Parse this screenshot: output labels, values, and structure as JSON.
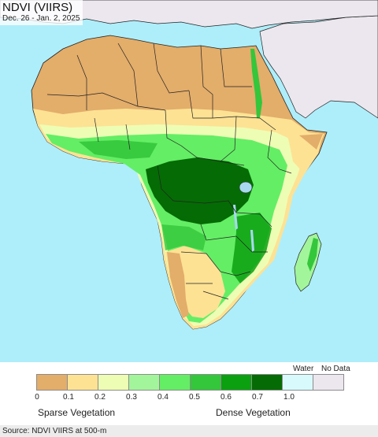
{
  "title": "NDVI (VIIRS)",
  "subtitle": "Dec. 26 - Jan. 2, 2025",
  "legend": {
    "water_label": "Water",
    "nodata_label": "No Data",
    "classes": [
      {
        "range": "0 - 0.1",
        "color": "#e3ad6a"
      },
      {
        "range": "0.1 - 0.2",
        "color": "#fde294"
      },
      {
        "range": "0.2 - 0.3",
        "color": "#eefdb4"
      },
      {
        "range": "0.3 - 0.4",
        "color": "#a3f59b"
      },
      {
        "range": "0.4 - 0.5",
        "color": "#64ee65"
      },
      {
        "range": "0.5 - 0.6",
        "color": "#34c63b"
      },
      {
        "range": "0.6 - 0.7",
        "color": "#0aa010"
      },
      {
        "range": "0.7 - 1.0",
        "color": "#056b05"
      },
      {
        "range": "Water",
        "color": "#d8fafc"
      },
      {
        "range": "No Data",
        "color": "#ece7ef"
      }
    ],
    "ticks": [
      "0",
      "0.1",
      "0.2",
      "0.3",
      "0.4",
      "0.5",
      "0.6",
      "0.7",
      "1.0"
    ],
    "low_label": "Sparse Vegetation",
    "high_label": "Dense Vegetation"
  },
  "source": "Source: NDVI VIIRS at 500-m",
  "colors": {
    "ocean": "#aeeefa",
    "no_data_land": "#ece7ef",
    "desert": "#e3ad6a",
    "dry": "#fde294",
    "light": "#eefdb4",
    "pale_green": "#a3f59b",
    "green": "#64ee65",
    "mid_green": "#34c63b",
    "dark_green": "#0aa010",
    "forest": "#056b05",
    "lake": "#a8d8f0"
  }
}
